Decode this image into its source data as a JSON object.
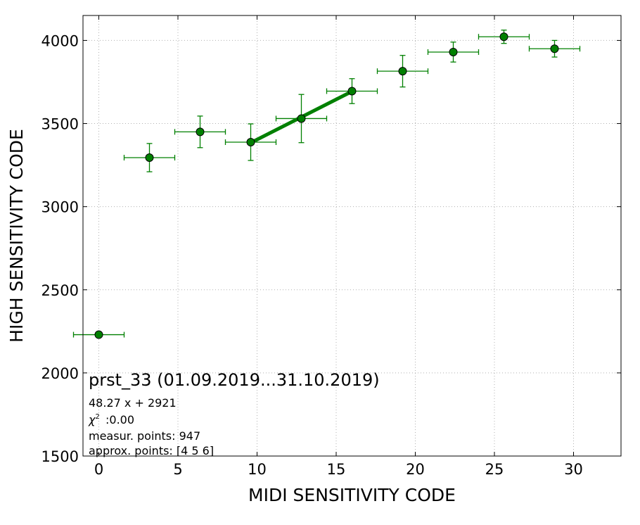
{
  "chart_data": {
    "type": "scatter",
    "xlabel": "MIDI SENSITIVITY CODE",
    "ylabel": "HIGH SENSITIVITY CODE",
    "xlim": [
      -1,
      33
    ],
    "ylim": [
      1500,
      4150
    ],
    "xticks": [
      0,
      5,
      10,
      15,
      20,
      25,
      30
    ],
    "yticks": [
      1500,
      2000,
      2500,
      3000,
      3500,
      4000
    ],
    "grid": true,
    "marker_color": "#008000",
    "points": [
      {
        "x": 0.0,
        "y": 2230,
        "xerr": 1.6,
        "yerr": 0
      },
      {
        "x": 3.2,
        "y": 3295,
        "xerr": 1.6,
        "yerr": 85
      },
      {
        "x": 6.4,
        "y": 3450,
        "xerr": 1.6,
        "yerr": 95
      },
      {
        "x": 9.6,
        "y": 3388,
        "xerr": 1.6,
        "yerr": 110
      },
      {
        "x": 12.8,
        "y": 3530,
        "xerr": 1.6,
        "yerr": 145
      },
      {
        "x": 16.0,
        "y": 3695,
        "xerr": 1.6,
        "yerr": 75
      },
      {
        "x": 19.2,
        "y": 3815,
        "xerr": 1.6,
        "yerr": 95
      },
      {
        "x": 22.4,
        "y": 3930,
        "xerr": 1.6,
        "yerr": 60
      },
      {
        "x": 25.6,
        "y": 4022,
        "xerr": 1.6,
        "yerr": 40
      },
      {
        "x": 28.8,
        "y": 3950,
        "xerr": 1.6,
        "yerr": 50
      }
    ],
    "fit": {
      "slope": 48.27,
      "intercept": 2921,
      "x_range": [
        9.6,
        16.0
      ],
      "color": "#008000"
    },
    "annotations": {
      "title": "prst_33 (01.09.2019...31.10.2019)",
      "equation": "48.27 x + 2921",
      "chi2": ":0.00",
      "measur_points": "measur. points: 947",
      "approx_points": "approx. points: [4 5 6]"
    }
  }
}
